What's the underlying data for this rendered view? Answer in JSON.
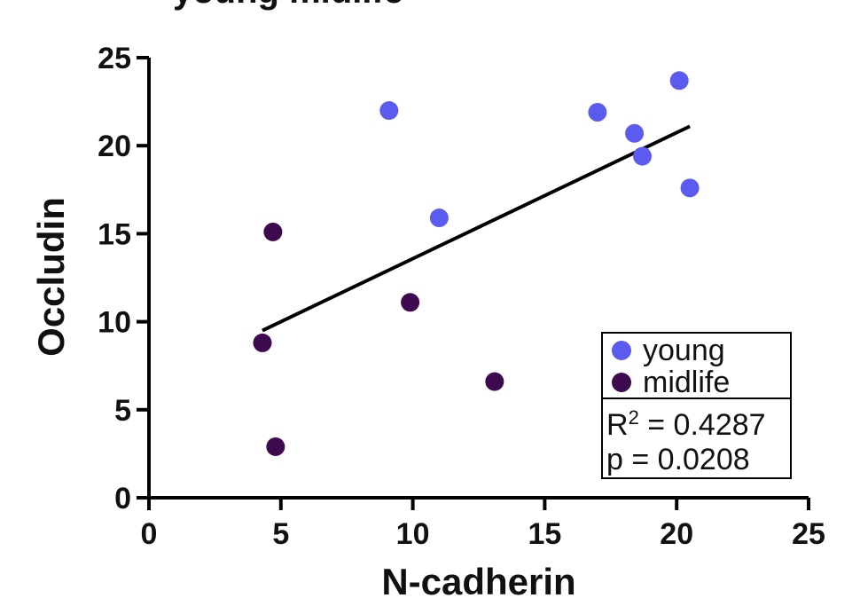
{
  "chart_data": {
    "type": "scatter",
    "title": "young midlife",
    "xlabel": "N-cadherin",
    "ylabel": "Occludin",
    "xlim": [
      0,
      25
    ],
    "ylim": [
      0,
      25
    ],
    "x_ticks": [
      0,
      5,
      10,
      15,
      20,
      25
    ],
    "y_ticks": [
      0,
      5,
      10,
      15,
      20,
      25
    ],
    "grid": false,
    "legend_position": "bottom-right",
    "series": [
      {
        "name": "young",
        "color": "#5b5bf0",
        "points": [
          {
            "x": 9.1,
            "y": 22.0
          },
          {
            "x": 11.0,
            "y": 15.9
          },
          {
            "x": 17.0,
            "y": 21.9
          },
          {
            "x": 18.4,
            "y": 20.7
          },
          {
            "x": 18.7,
            "y": 19.4
          },
          {
            "x": 20.1,
            "y": 23.7
          },
          {
            "x": 20.5,
            "y": 17.6
          }
        ]
      },
      {
        "name": "midlife",
        "color": "#3d0a4f",
        "points": [
          {
            "x": 4.7,
            "y": 15.1
          },
          {
            "x": 4.3,
            "y": 8.8
          },
          {
            "x": 4.8,
            "y": 2.9
          },
          {
            "x": 9.9,
            "y": 11.1
          },
          {
            "x": 13.1,
            "y": 6.6
          }
        ]
      }
    ],
    "regression": {
      "color": "#000000",
      "x": [
        4.3,
        20.5
      ],
      "y": [
        9.5,
        21.1
      ]
    },
    "stats": {
      "r2_label": "R",
      "r2_superscript": "2",
      "r2_value": " = 0.4287",
      "p_text": "p = 0.0208"
    }
  }
}
